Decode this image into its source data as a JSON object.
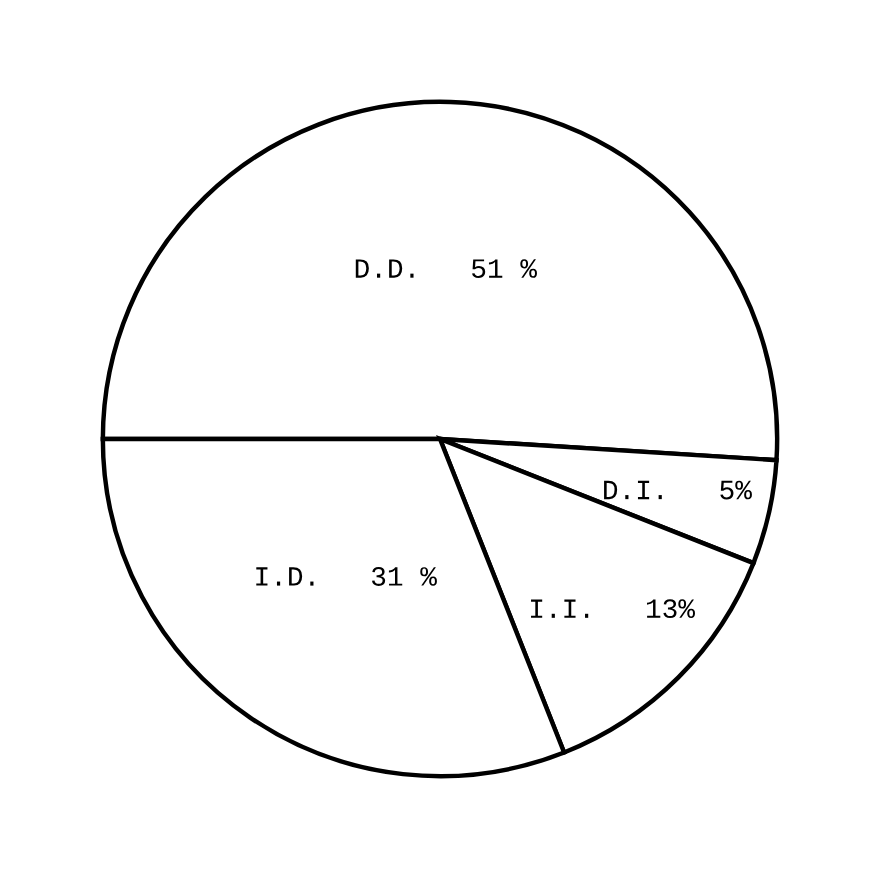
{
  "chart_data": {
    "type": "pie",
    "categories": [
      "D.D.",
      "D.I.",
      "I.I.",
      "I.D."
    ],
    "values": [
      51,
      5,
      13,
      31
    ],
    "colors": [
      "#ffffff",
      "#ffffff",
      "#ffffff",
      "#ffffff"
    ],
    "value_labels": [
      "51 %",
      "5%",
      "13%",
      "31 %"
    ],
    "legend": false
  }
}
